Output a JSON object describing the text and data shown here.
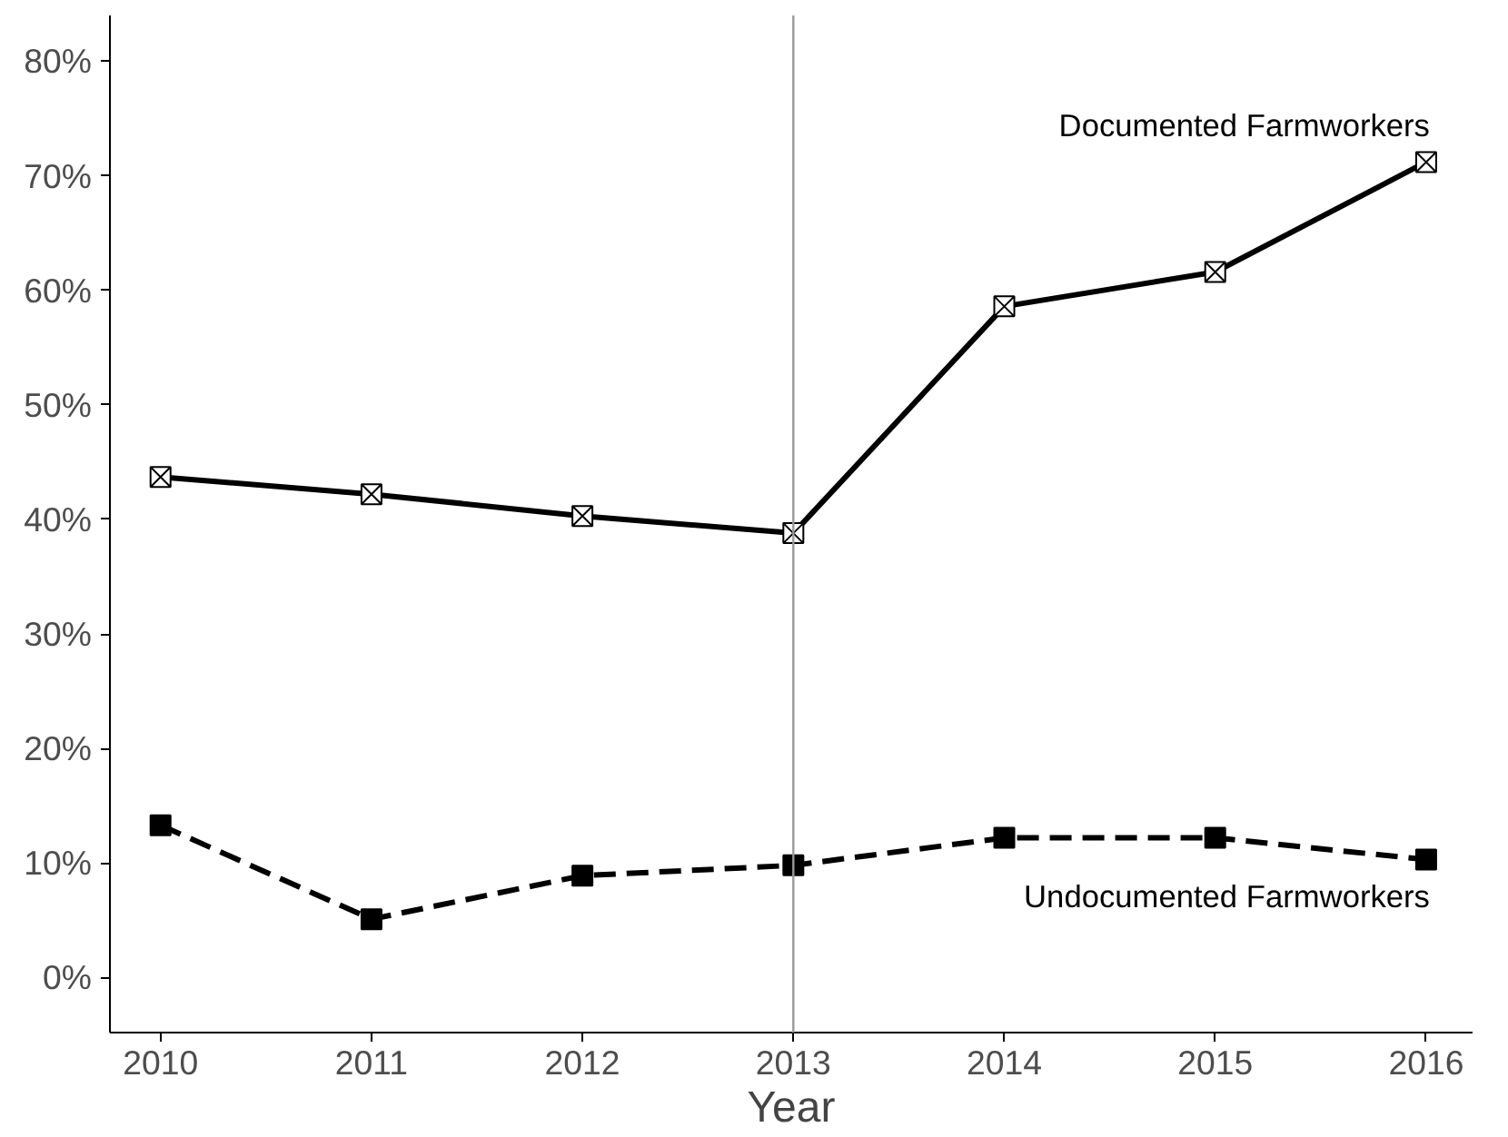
{
  "chart_data": {
    "type": "line",
    "xlabel": "Year",
    "x": [
      2010,
      2011,
      2012,
      2013,
      2014,
      2015,
      2016
    ],
    "series": [
      {
        "name": "Documented Farmworkers",
        "color": "#000000",
        "values": [
          43.7,
          42.2,
          40.3,
          38.8,
          58.6,
          61.6,
          71.2
        ],
        "marker": "cross",
        "line_style": "solid"
      },
      {
        "name": "Undocumented Farmworkers",
        "color": "#000000",
        "values": [
          13.3,
          5.1,
          8.9,
          9.8,
          12.2,
          12.2,
          10.3
        ],
        "marker": "square",
        "line_style": "dashed"
      }
    ],
    "ref_lines": [
      {
        "axis": "x",
        "value": 2013,
        "color": "#999999"
      }
    ],
    "xlim": [
      2009.76,
      2016.22
    ],
    "xticks": [
      2010,
      2011,
      2012,
      2013,
      2014,
      2015,
      2016
    ],
    "ylim": [
      -4.8,
      84
    ],
    "yticks": [
      {
        "value": 0,
        "label": "0%"
      },
      {
        "value": 10,
        "label": "10%"
      },
      {
        "value": 20,
        "label": "20%"
      },
      {
        "value": 30,
        "label": "30%"
      },
      {
        "value": 40,
        "label": "40%"
      },
      {
        "value": 50,
        "label": "50%"
      },
      {
        "value": 60,
        "label": "60%"
      },
      {
        "value": 70,
        "label": "70%"
      },
      {
        "value": 80,
        "label": "80%"
      }
    ],
    "grid": false
  }
}
